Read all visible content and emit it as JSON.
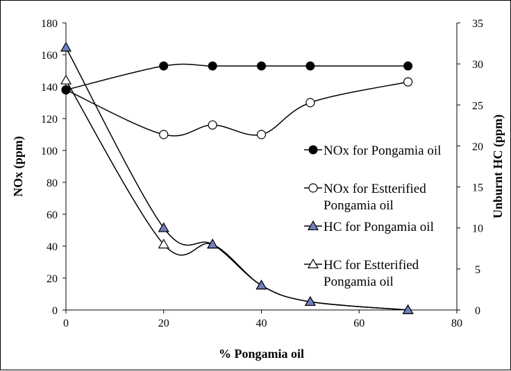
{
  "chart_data": {
    "type": "line",
    "title": "",
    "xlabel": "% Pongamia oil",
    "ylabel_left": "NOx  (ppm)",
    "ylabel_right": "Unburnt HC (ppm)",
    "xlim": [
      0,
      80
    ],
    "ylim_left": [
      0,
      180
    ],
    "ylim_right": [
      0,
      35
    ],
    "x_ticks": [
      "0",
      "20",
      "40",
      "60",
      "80"
    ],
    "y_left_ticks": [
      "0",
      "20",
      "40",
      "60",
      "80",
      "100",
      "120",
      "140",
      "160",
      "180"
    ],
    "y_right_ticks": [
      "0",
      "5",
      "10",
      "15",
      "20",
      "25",
      "30",
      "35"
    ],
    "grid": false,
    "legend_position": "right-inside",
    "series": [
      {
        "name": "NOx for Pongamia oil",
        "axis": "left",
        "marker": "filled-circle",
        "color": "#000000",
        "x": [
          0,
          20,
          30,
          40,
          50,
          70
        ],
        "y": [
          138,
          153,
          153,
          153,
          153,
          153
        ]
      },
      {
        "name": "NOx for Estterified Pongamia oil",
        "legend_lines": [
          "NOx for Estterified",
          "Pongamia oil"
        ],
        "axis": "left",
        "marker": "open-circle",
        "color": "#000000",
        "x": [
          0,
          20,
          30,
          40,
          50,
          70
        ],
        "y": [
          138,
          110,
          116,
          110,
          130,
          143
        ]
      },
      {
        "name": "HC for Pongamia oil",
        "axis": "right",
        "marker": "filled-triangle",
        "color": "#000000",
        "marker_fill": "#6f7fbf",
        "x": [
          0,
          20,
          30,
          40,
          50,
          70
        ],
        "y": [
          32,
          10,
          8,
          3,
          1,
          0
        ]
      },
      {
        "name": "HC for Estterified Pongamia oil",
        "legend_lines": [
          "HC for Estterified",
          "Pongamia oil"
        ],
        "axis": "right",
        "marker": "open-triangle",
        "color": "#000000",
        "x": [
          0,
          20,
          30,
          40,
          50,
          70
        ],
        "y": [
          28,
          8,
          8,
          3,
          1,
          0
        ]
      }
    ]
  }
}
